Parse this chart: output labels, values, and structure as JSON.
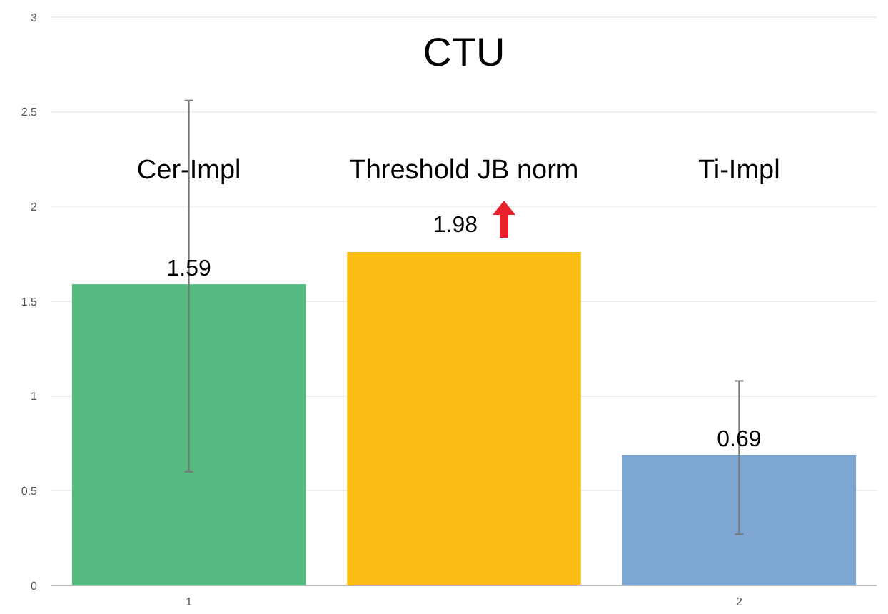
{
  "chart_data": {
    "type": "bar",
    "title": "CTU",
    "categories": [
      "1",
      null,
      "2"
    ],
    "values": [
      1.59,
      1.76,
      0.69
    ],
    "colors": [
      "#55bb80",
      "#fbbc14",
      "#7ea6d3"
    ],
    "errors": [
      [
        0.6,
        2.56
      ],
      null,
      [
        0.27,
        1.08
      ]
    ],
    "value_labels": [
      "1.59",
      null,
      "0.69"
    ],
    "annotations": [
      "Cer-Impl",
      "Threshold JB norm",
      "Ti-Impl",
      "1.98"
    ],
    "ylim": [
      0,
      3
    ],
    "yticks": [
      0,
      0.5,
      1,
      1.5,
      2,
      2.5,
      3
    ],
    "grid": "y"
  }
}
